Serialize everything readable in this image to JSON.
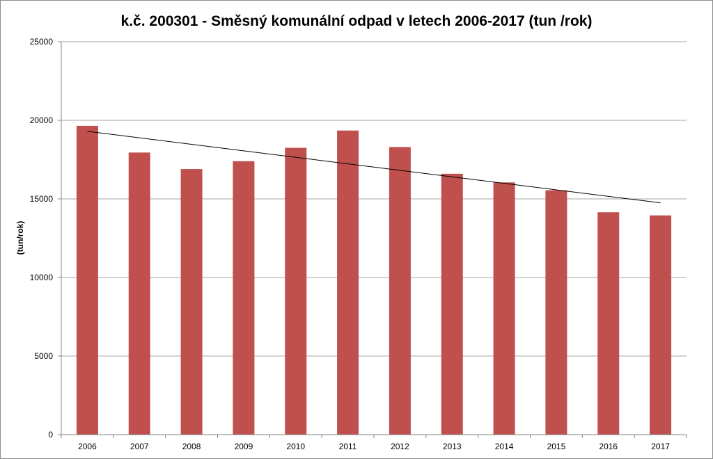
{
  "chart_data": {
    "type": "bar",
    "title": "k.č. 200301 -  Směsný komunální odpad  v letech 2006-2017 (tun /rok)",
    "xlabel": "",
    "ylabel": "(tun/rok)",
    "categories": [
      "2006",
      "2007",
      "2008",
      "2009",
      "2010",
      "2011",
      "2012",
      "2013",
      "2014",
      "2015",
      "2016",
      "2017"
    ],
    "series": [
      {
        "values": [
          19650,
          17950,
          16900,
          17400,
          18250,
          19350,
          18300,
          16600,
          16050,
          15550,
          14150,
          13950
        ]
      }
    ],
    "trendline": {
      "type": "linear",
      "start": 19300,
      "end": 14750
    },
    "ylim": [
      0,
      25000
    ],
    "yticks": [
      0,
      5000,
      10000,
      15000,
      20000,
      25000
    ],
    "ytick_labels": [
      "0",
      "5000",
      "10000",
      "15000",
      "20000",
      "25000"
    ],
    "grid": true,
    "legend": "none",
    "colors": {
      "bar": "#c0504d",
      "trendline": "#000000",
      "grid": "#a6a6a6"
    }
  }
}
